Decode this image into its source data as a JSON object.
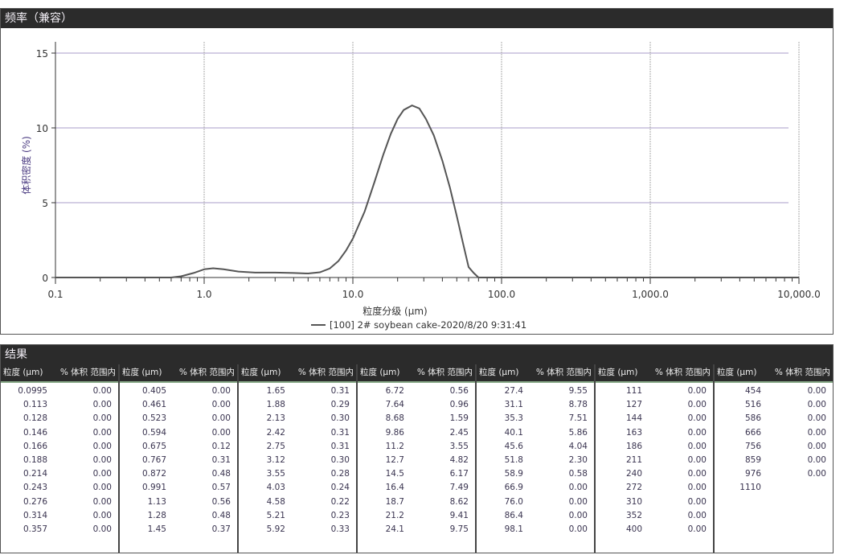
{
  "chart_panel": {
    "title": "频率（兼容）"
  },
  "chart_data": {
    "type": "line",
    "title": "",
    "xlabel": "粒度分级 (µm)",
    "ylabel": "体积密度 (%)",
    "x_scale": "log",
    "xlim": [
      0.1,
      10000
    ],
    "ylim": [
      0,
      15
    ],
    "x_ticks": [
      "0.1",
      "1.0",
      "10.0",
      "100.0",
      "1,000.0",
      "10,000.0"
    ],
    "y_ticks": [
      "0",
      "5",
      "10",
      "15"
    ],
    "grid": true,
    "legend_position": "bottom-center",
    "line_color": "#555555",
    "series": [
      {
        "name": "[100] 2# soybean cake-2020/8/20 9:31:41",
        "x": [
          0.1,
          0.3,
          0.6,
          0.7,
          0.85,
          1.0,
          1.15,
          1.35,
          1.7,
          2.2,
          3.0,
          4.0,
          5.0,
          6.0,
          7.0,
          8.0,
          9.0,
          10.0,
          12.0,
          14.0,
          16.0,
          18.0,
          20.0,
          22.0,
          25.0,
          28.0,
          31.0,
          35.0,
          40.0,
          45.0,
          50.0,
          55.0,
          60.0,
          65.0,
          70.0,
          80.0,
          10000
        ],
        "y": [
          0,
          0,
          0,
          0.08,
          0.3,
          0.55,
          0.62,
          0.55,
          0.4,
          0.33,
          0.33,
          0.3,
          0.27,
          0.35,
          0.6,
          1.1,
          1.8,
          2.6,
          4.4,
          6.4,
          8.2,
          9.6,
          10.6,
          11.2,
          11.5,
          11.3,
          10.6,
          9.5,
          7.8,
          6.0,
          4.1,
          2.3,
          0.7,
          0.3,
          0,
          0,
          0
        ]
      }
    ]
  },
  "results": {
    "title": "结果",
    "col_size": "粒度 (µm)",
    "col_vol": "% 体积 范围内",
    "groups": [
      {
        "size": [
          "0.0995",
          "0.113",
          "0.128",
          "0.146",
          "0.166",
          "0.188",
          "0.214",
          "0.243",
          "0.276",
          "0.314",
          "0.357"
        ],
        "vol": [
          "0.00",
          "0.00",
          "0.00",
          "0.00",
          "0.00",
          "0.00",
          "0.00",
          "0.00",
          "0.00",
          "0.00",
          "0.00"
        ]
      },
      {
        "size": [
          "0.405",
          "0.461",
          "0.523",
          "0.594",
          "0.675",
          "0.767",
          "0.872",
          "0.991",
          "1.13",
          "1.28",
          "1.45"
        ],
        "vol": [
          "0.00",
          "0.00",
          "0.00",
          "0.00",
          "0.12",
          "0.31",
          "0.48",
          "0.57",
          "0.56",
          "0.48",
          "0.37"
        ]
      },
      {
        "size": [
          "1.65",
          "1.88",
          "2.13",
          "2.42",
          "2.75",
          "3.12",
          "3.55",
          "4.03",
          "4.58",
          "5.21",
          "5.92"
        ],
        "vol": [
          "0.31",
          "0.29",
          "0.30",
          "0.31",
          "0.31",
          "0.30",
          "0.28",
          "0.24",
          "0.22",
          "0.23",
          "0.33"
        ]
      },
      {
        "size": [
          "6.72",
          "7.64",
          "8.68",
          "9.86",
          "11.2",
          "12.7",
          "14.5",
          "16.4",
          "18.7",
          "21.2",
          "24.1"
        ],
        "vol": [
          "0.56",
          "0.96",
          "1.59",
          "2.45",
          "3.55",
          "4.82",
          "6.17",
          "7.49",
          "8.62",
          "9.41",
          "9.75"
        ]
      },
      {
        "size": [
          "27.4",
          "31.1",
          "35.3",
          "40.1",
          "45.6",
          "51.8",
          "58.9",
          "66.9",
          "76.0",
          "86.4",
          "98.1"
        ],
        "vol": [
          "9.55",
          "8.78",
          "7.51",
          "5.86",
          "4.04",
          "2.30",
          "0.58",
          "0.00",
          "0.00",
          "0.00",
          "0.00"
        ]
      },
      {
        "size": [
          "111",
          "127",
          "144",
          "163",
          "186",
          "211",
          "240",
          "272",
          "310",
          "352",
          "400"
        ],
        "vol": [
          "0.00",
          "0.00",
          "0.00",
          "0.00",
          "0.00",
          "0.00",
          "0.00",
          "0.00",
          "0.00",
          "0.00",
          "0.00"
        ]
      },
      {
        "size": [
          "454",
          "516",
          "586",
          "666",
          "756",
          "859",
          "976",
          "1110"
        ],
        "vol": [
          "0.00",
          "0.00",
          "0.00",
          "0.00",
          "0.00",
          "0.00",
          "0.00",
          ""
        ]
      }
    ]
  }
}
